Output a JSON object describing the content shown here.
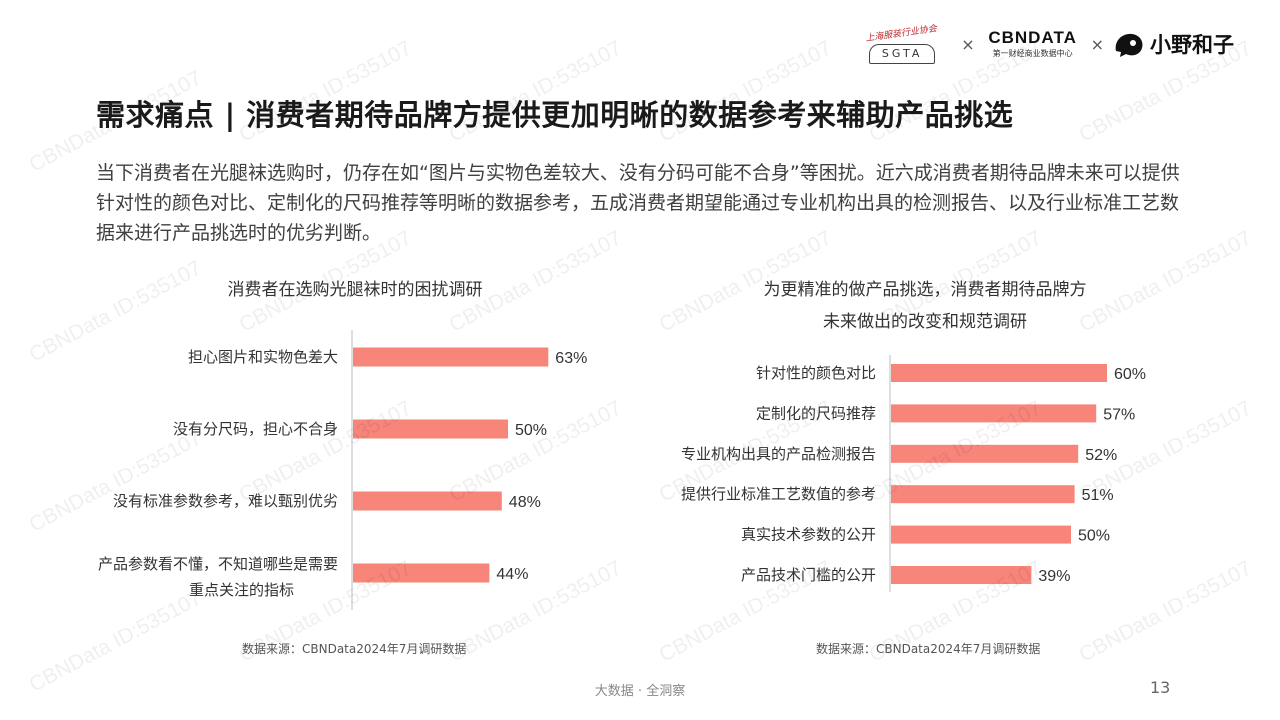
{
  "header": {
    "logo_sgta_script": "上海服装行业协会",
    "logo_sgta_mark": "SGTA",
    "logo_separator": "×",
    "logo_cbn_name": "CBNDATA",
    "logo_cbn_sub": "第一财经商业数据中心",
    "logo_xy_name": "小野和子"
  },
  "title": "需求痛点 | 消费者期待品牌方提供更加明晰的数据参考来辅助产品挑选",
  "intro": "当下消费者在光腿袜选购时，仍存在如“图片与实物色差较大、没有分码可能不合身”等困扰。近六成消费者期待品牌未来可以提供针对性的颜色对比、定制化的尺码推荐等明晰的数据参考，五成消费者期望能通过专业机构出具的检测报告、以及行业标准工艺数据来进行产品挑选时的优劣判断。",
  "chart_data": [
    {
      "type": "bar",
      "orientation": "horizontal",
      "title": "消费者在选购光腿袜时的困扰调研",
      "categories": [
        "担心图片和实物色差大",
        "没有分尺码，担心不合身",
        "没有标准参数参考，难以甄别优劣",
        "产品参数看不懂，不知道哪些是需要重点关注的指标"
      ],
      "values": [
        63,
        50,
        48,
        44
      ],
      "value_labels": [
        "63%",
        "50%",
        "48%",
        "44%"
      ],
      "unit": "%",
      "color": "#f7857a",
      "source": "数据来源：CBNData2024年7月调研数据"
    },
    {
      "type": "bar",
      "orientation": "horizontal",
      "title_lines": [
        "为更精准的做产品挑选，消费者期待品牌方",
        "未来做出的改变和规范调研"
      ],
      "categories": [
        "针对性的颜色对比",
        "定制化的尺码推荐",
        "专业机构出具的产品检测报告",
        "提供行业标准工艺数值的参考",
        "真实技术参数的公开",
        "产品技术门槛的公开"
      ],
      "values": [
        60,
        57,
        52,
        51,
        50,
        39
      ],
      "value_labels": [
        "60%",
        "57%",
        "52%",
        "51%",
        "50%",
        "39%"
      ],
      "unit": "%",
      "color": "#f7857a",
      "source": "数据来源：CBNData2024年7月调研数据"
    }
  ],
  "footer": {
    "text": "大数据 · 全洞察",
    "page_number": "13"
  },
  "watermark": "CBNData ID:535107"
}
